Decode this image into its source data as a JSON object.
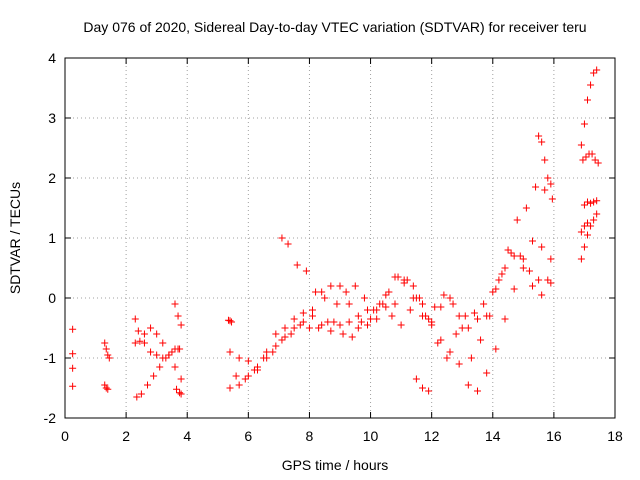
{
  "chart_data": {
    "type": "scatter",
    "title": "Day 076 of 2020, Sidereal Day-to-day VTEC variation (SDTVAR) for receiver teru",
    "xlabel": "GPS time / hours",
    "ylabel": "SDTVAR / TECUs",
    "xlim": [
      0,
      18
    ],
    "ylim": [
      -2,
      4
    ],
    "xticks": [
      "0",
      "2",
      "4",
      "6",
      "8",
      "10",
      "12",
      "14",
      "16",
      "18"
    ],
    "yticks": [
      "-2",
      "-1",
      "0",
      "1",
      "2",
      "3",
      "4"
    ],
    "grid": true,
    "marker": "+",
    "color": "#ff0000",
    "series": [
      {
        "name": "seg-a",
        "x": [
          0.25,
          0.25,
          0.25,
          0.25
        ],
        "y": [
          -0.52,
          -0.93,
          -1.17,
          -1.47
        ]
      },
      {
        "name": "seg-b",
        "x": [
          1.3,
          1.35,
          1.4,
          1.45
        ],
        "y": [
          -0.75,
          -0.85,
          -0.95,
          -1.0
        ]
      },
      {
        "name": "seg-c",
        "x": [
          1.3,
          1.35,
          1.4
        ],
        "y": [
          -1.45,
          -1.5,
          -1.52
        ]
      },
      {
        "name": "seg-d",
        "x": [
          2.3,
          2.4,
          2.6,
          2.8,
          3.0,
          3.2,
          3.4,
          3.6,
          3.75
        ],
        "y": [
          -0.35,
          -0.55,
          -0.75,
          -0.9,
          -0.95,
          -1.0,
          -0.95,
          -0.85,
          -0.85
        ]
      },
      {
        "name": "seg-e",
        "x": [
          2.3,
          2.45,
          2.6,
          2.8,
          3.0,
          3.2,
          3.4,
          3.6,
          3.8
        ],
        "y": [
          -0.75,
          -0.72,
          -0.6,
          -0.5,
          -0.6,
          -0.75,
          -0.95,
          -1.15,
          -1.35
        ]
      },
      {
        "name": "seg-f",
        "x": [
          2.35,
          2.5,
          2.7,
          2.9,
          3.1,
          3.3,
          3.5,
          3.7
        ],
        "y": [
          -1.65,
          -1.6,
          -1.45,
          -1.3,
          -1.15,
          -1.0,
          -0.9,
          -0.85
        ]
      },
      {
        "name": "seg-g",
        "x": [
          3.6,
          3.7,
          3.8
        ],
        "y": [
          -0.1,
          -0.3,
          -0.45
        ]
      },
      {
        "name": "seg-h",
        "x": [
          3.65,
          3.75,
          3.8
        ],
        "y": [
          -1.52,
          -1.58,
          -1.6
        ]
      },
      {
        "name": "seg-i",
        "x": [
          5.35,
          5.4,
          5.45
        ],
        "y": [
          -0.37,
          -0.38,
          -0.4
        ]
      },
      {
        "name": "seg-j",
        "x": [
          5.4,
          5.7,
          6.0,
          6.3,
          6.6,
          6.9,
          7.2,
          7.5,
          7.8,
          8.1,
          8.4,
          8.7,
          9.0,
          9.3,
          9.6,
          9.9,
          10.2,
          10.5,
          10.8,
          11.1,
          11.4,
          11.7,
          12.0,
          12.3,
          12.6,
          12.9,
          13.2,
          13.5,
          13.8,
          14.1,
          14.4,
          14.7,
          15.0,
          15.3,
          15.6,
          15.9
        ],
        "y": [
          -1.5,
          -1.45,
          -1.3,
          -1.15,
          -0.9,
          -0.6,
          -0.5,
          -0.35,
          -0.25,
          -0.3,
          -0.45,
          -0.55,
          -0.45,
          -0.4,
          -0.5,
          -0.45,
          -0.2,
          0.05,
          0.35,
          0.3,
          0.0,
          -0.3,
          -0.45,
          -0.7,
          -0.9,
          -1.1,
          -1.45,
          -1.55,
          -1.25,
          -0.85,
          -0.35,
          0.15,
          0.65,
          0.95,
          0.85,
          0.65
        ]
      },
      {
        "name": "seg-k",
        "x": [
          5.4,
          5.7,
          6.0,
          6.3,
          6.6,
          6.9,
          7.2,
          7.5,
          7.8,
          8.1,
          8.4,
          8.7,
          9.0,
          9.3,
          9.6,
          9.9,
          10.2,
          10.5,
          10.8,
          11.1,
          11.4,
          11.7,
          12.0,
          12.3,
          12.6,
          12.9,
          13.2,
          13.5,
          13.8,
          14.1,
          14.4,
          14.7,
          15.0,
          15.3,
          15.6,
          15.9
        ],
        "y": [
          -0.9,
          -1.0,
          -1.05,
          -1.2,
          -1.0,
          -0.8,
          -0.65,
          -0.5,
          -0.4,
          -0.2,
          0.1,
          0.2,
          0.2,
          -0.1,
          -0.3,
          -0.2,
          -0.35,
          -0.15,
          -0.1,
          0.25,
          0.2,
          -0.1,
          -0.4,
          -0.15,
          0.0,
          -0.3,
          -0.5,
          -0.35,
          -0.3,
          0.15,
          0.5,
          0.7,
          0.5,
          0.2,
          0.05,
          0.25
        ]
      },
      {
        "name": "seg-l",
        "x": [
          7.1,
          7.3,
          7.6,
          7.9,
          8.2,
          8.5,
          8.8,
          9.1,
          9.4,
          9.7,
          10.0,
          10.3,
          10.6,
          10.9,
          11.2,
          11.5,
          11.8,
          12.1,
          12.4,
          12.7,
          13.0,
          13.3,
          13.6,
          13.9,
          14.2,
          14.5,
          14.8,
          15.1,
          15.4,
          15.7,
          15.95
        ],
        "y": [
          1.0,
          0.9,
          0.55,
          0.45,
          0.1,
          0.0,
          -0.4,
          -0.6,
          -0.65,
          -0.4,
          -0.35,
          -0.1,
          0.1,
          0.35,
          0.3,
          0.0,
          -0.3,
          -0.15,
          0.05,
          -0.1,
          -0.5,
          -1.0,
          -0.7,
          -0.3,
          0.3,
          0.8,
          1.3,
          1.5,
          1.85,
          1.8,
          1.65
        ]
      },
      {
        "name": "seg-m",
        "x": [
          5.6,
          5.9,
          6.2,
          6.5,
          6.8,
          7.1,
          7.4,
          7.7,
          8.0,
          8.3,
          8.6,
          8.9,
          9.2,
          9.5,
          9.8,
          10.1,
          10.4,
          10.7,
          11.0,
          11.3,
          11.6,
          11.9,
          12.2,
          12.5,
          12.8,
          13.1,
          13.4,
          13.7,
          14.0,
          14.3,
          14.6,
          14.9,
          15.2,
          15.5,
          15.8
        ],
        "y": [
          -1.3,
          -1.35,
          -1.2,
          -1.0,
          -0.9,
          -0.7,
          -0.6,
          -0.45,
          -0.5,
          -0.5,
          -0.4,
          -0.1,
          0.1,
          0.2,
          0.0,
          -0.2,
          -0.1,
          -0.3,
          -0.45,
          -0.2,
          0.0,
          -0.35,
          -0.75,
          -1.0,
          -0.6,
          -0.3,
          -0.25,
          -0.1,
          0.1,
          0.4,
          0.75,
          0.7,
          0.45,
          0.3,
          0.3
        ]
      },
      {
        "name": "seg-n",
        "x": [
          11.5,
          11.7,
          11.9
        ],
        "y": [
          -1.35,
          -1.5,
          -1.55
        ]
      },
      {
        "name": "seg-o",
        "x": [
          15.5,
          15.6,
          15.7,
          15.8,
          15.9
        ],
        "y": [
          2.7,
          2.6,
          2.3,
          2.0,
          1.9
        ]
      },
      {
        "name": "seg-p",
        "x": [
          16.9,
          17.0,
          17.1,
          17.2,
          17.3,
          17.4
        ],
        "y": [
          2.55,
          2.9,
          3.3,
          3.55,
          3.75,
          3.8
        ]
      },
      {
        "name": "seg-q",
        "x": [
          16.95,
          17.05,
          17.15,
          17.25,
          17.35,
          17.45
        ],
        "y": [
          2.3,
          2.35,
          2.4,
          2.4,
          2.3,
          2.25
        ]
      },
      {
        "name": "seg-r",
        "x": [
          16.9,
          17.0,
          17.1,
          17.2,
          17.3,
          17.4
        ],
        "y": [
          0.65,
          0.85,
          1.05,
          1.2,
          1.3,
          1.4
        ]
      },
      {
        "name": "seg-s",
        "x": [
          17.0,
          17.1,
          17.2,
          17.3,
          17.4
        ],
        "y": [
          1.55,
          1.6,
          1.58,
          1.6,
          1.62
        ]
      },
      {
        "name": "seg-t",
        "x": [
          16.9,
          17.0,
          17.1
        ],
        "y": [
          1.1,
          1.2,
          1.25
        ]
      }
    ]
  }
}
